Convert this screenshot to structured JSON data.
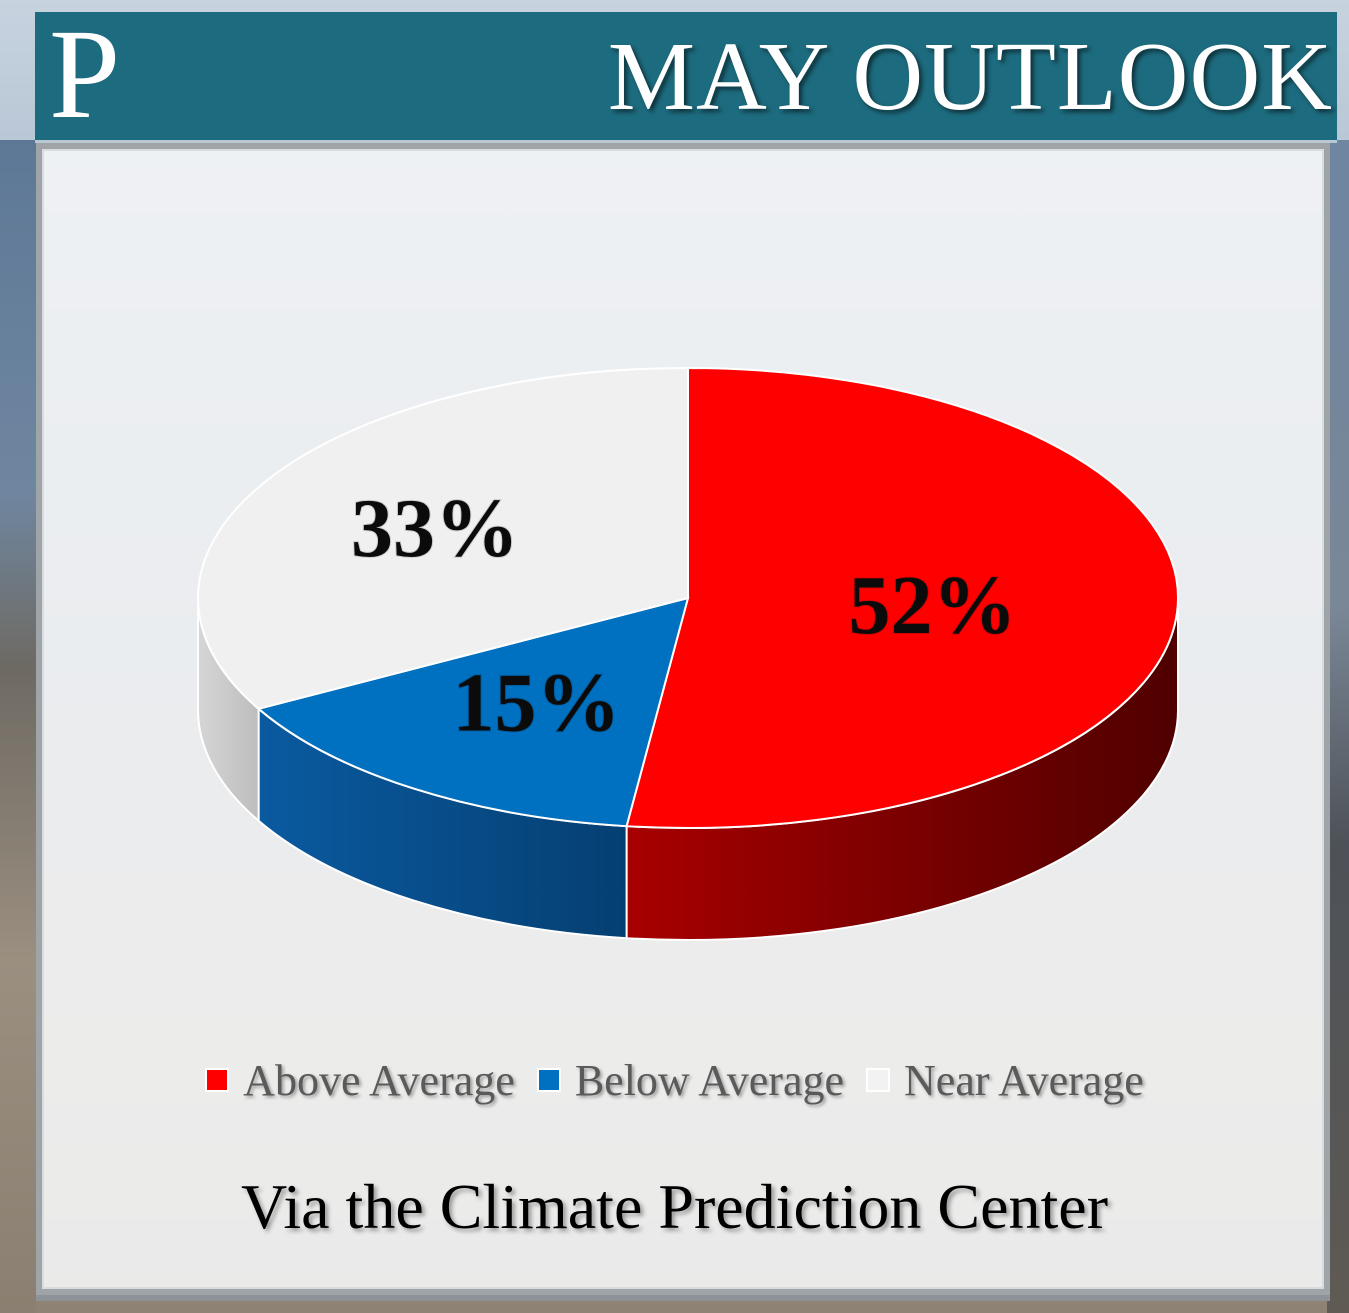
{
  "header": {
    "logo": "P",
    "title": "MAY OUTLOOK"
  },
  "chart_data": {
    "type": "pie",
    "title": "MAY OUTLOOK",
    "categories": [
      "Above Average",
      "Below Average",
      "Near Average"
    ],
    "values": [
      52,
      15,
      33
    ],
    "labels": [
      "52%",
      "15%",
      "33%"
    ],
    "colors": [
      "#ff0000",
      "#0070c0",
      "#f0f0f0"
    ],
    "style": "3d",
    "legend": "bottom"
  },
  "legend": {
    "items": [
      {
        "label": "Above Average",
        "color": "#ff0000"
      },
      {
        "label": "Below Average",
        "color": "#0070c0"
      },
      {
        "label": "Near Average",
        "color": "#f2f2f2"
      }
    ]
  },
  "source": "Via the Climate Prediction Center"
}
